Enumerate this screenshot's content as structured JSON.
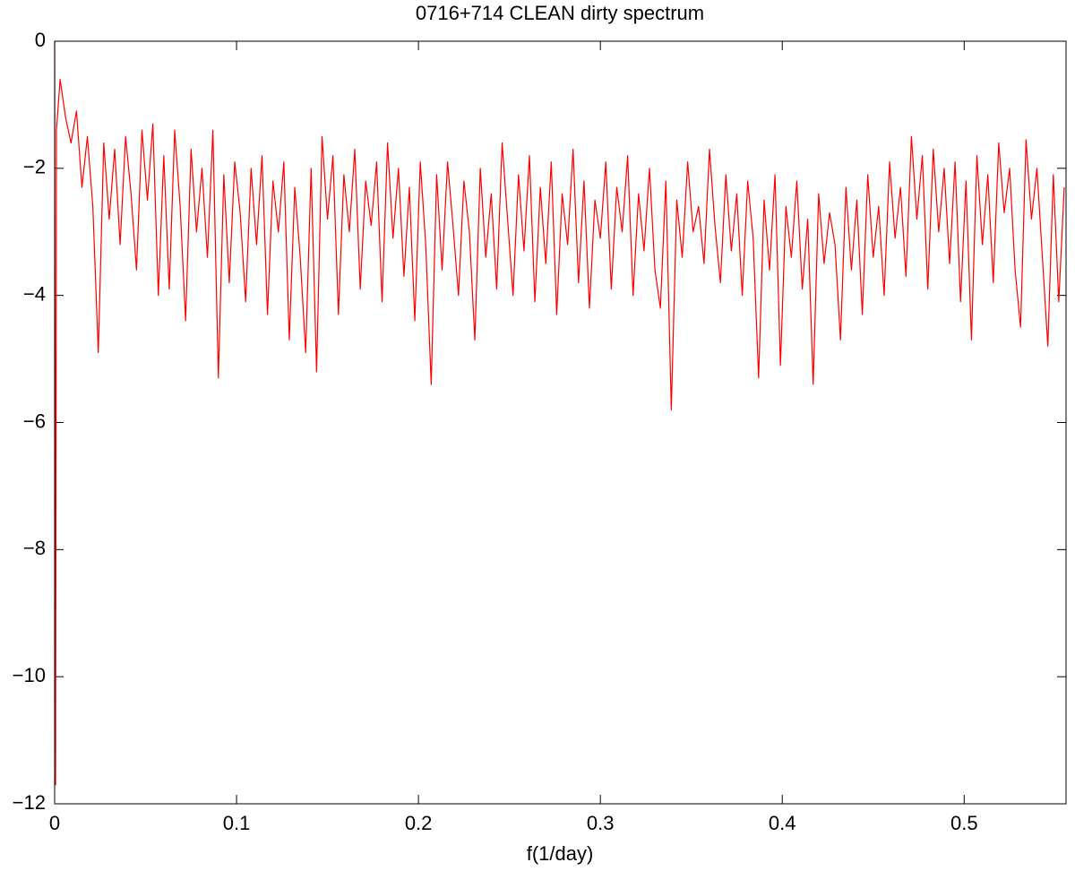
{
  "chart_data": {
    "type": "line",
    "title": "0716+714 CLEAN dirty spectrum",
    "x_label": "f(1/day)",
    "color": "#ff0000",
    "xlim": [
      0,
      0.556
    ],
    "ylim": [
      -12,
      0
    ],
    "xticks": [
      0,
      0.1,
      0.2,
      0.3,
      0.4,
      0.5
    ],
    "yticks": [
      0,
      {
        "value": -2,
        "label": "−2"
      },
      {
        "value": -4,
        "label": "−4"
      },
      {
        "value": -6,
        "label": "−6"
      },
      {
        "value": -8,
        "label": "−8"
      },
      {
        "value": -10,
        "label": "−10"
      },
      {
        "value": -12,
        "label": "−12"
      }
    ],
    "x": [
      0,
      0.0005,
      0.001,
      0.003,
      0.006,
      0.009,
      0.012,
      0.015,
      0.018,
      0.021,
      0.024,
      0.027,
      0.03,
      0.033,
      0.036,
      0.039,
      0.042,
      0.045,
      0.048,
      0.051,
      0.054,
      0.057,
      0.06,
      0.063,
      0.066,
      0.069,
      0.072,
      0.075,
      0.078,
      0.081,
      0.084,
      0.087,
      0.09,
      0.093,
      0.096,
      0.099,
      0.102,
      0.105,
      0.108,
      0.111,
      0.114,
      0.117,
      0.12,
      0.123,
      0.126,
      0.129,
      0.132,
      0.135,
      0.138,
      0.141,
      0.144,
      0.147,
      0.15,
      0.153,
      0.156,
      0.159,
      0.162,
      0.165,
      0.168,
      0.171,
      0.174,
      0.177,
      0.18,
      0.183,
      0.186,
      0.189,
      0.192,
      0.195,
      0.198,
      0.201,
      0.204,
      0.207,
      0.21,
      0.213,
      0.216,
      0.219,
      0.222,
      0.225,
      0.228,
      0.231,
      0.234,
      0.237,
      0.24,
      0.243,
      0.246,
      0.249,
      0.252,
      0.255,
      0.258,
      0.261,
      0.264,
      0.267,
      0.27,
      0.273,
      0.276,
      0.279,
      0.282,
      0.285,
      0.288,
      0.291,
      0.294,
      0.297,
      0.3,
      0.303,
      0.306,
      0.309,
      0.312,
      0.315,
      0.318,
      0.321,
      0.324,
      0.327,
      0.33,
      0.333,
      0.336,
      0.339,
      0.342,
      0.345,
      0.348,
      0.351,
      0.354,
      0.357,
      0.36,
      0.363,
      0.366,
      0.369,
      0.372,
      0.375,
      0.378,
      0.381,
      0.384,
      0.387,
      0.39,
      0.393,
      0.396,
      0.399,
      0.402,
      0.405,
      0.408,
      0.411,
      0.414,
      0.417,
      0.42,
      0.423,
      0.426,
      0.429,
      0.432,
      0.435,
      0.438,
      0.441,
      0.444,
      0.447,
      0.45,
      0.453,
      0.456,
      0.459,
      0.462,
      0.465,
      0.468,
      0.471,
      0.474,
      0.477,
      0.48,
      0.483,
      0.486,
      0.489,
      0.492,
      0.495,
      0.498,
      0.501,
      0.504,
      0.507,
      0.51,
      0.513,
      0.516,
      0.519,
      0.522,
      0.525,
      0.528,
      0.531,
      0.534,
      0.537,
      0.54,
      0.543,
      0.546,
      0.549,
      0.552,
      0.555
    ],
    "values": [
      0,
      -11.7,
      -1.4,
      -0.6,
      -1.2,
      -1.6,
      -1.1,
      -2.3,
      -1.5,
      -2.6,
      -4.9,
      -1.6,
      -2.8,
      -1.7,
      -3.2,
      -1.5,
      -2.4,
      -3.6,
      -1.4,
      -2.5,
      -1.3,
      -4.0,
      -1.8,
      -3.9,
      -1.4,
      -2.6,
      -4.4,
      -1.7,
      -3.0,
      -2.0,
      -3.4,
      -1.4,
      -5.3,
      -2.1,
      -3.8,
      -1.9,
      -2.7,
      -4.1,
      -2.0,
      -3.2,
      -1.8,
      -4.3,
      -2.2,
      -3.0,
      -1.9,
      -4.7,
      -2.3,
      -3.4,
      -4.9,
      -2.0,
      -5.2,
      -1.5,
      -2.8,
      -1.8,
      -4.3,
      -2.1,
      -3.0,
      -1.7,
      -3.9,
      -2.2,
      -2.9,
      -1.9,
      -4.1,
      -1.6,
      -3.1,
      -2.0,
      -3.7,
      -2.3,
      -4.4,
      -1.9,
      -3.2,
      -5.4,
      -2.1,
      -3.6,
      -1.9,
      -2.9,
      -4.0,
      -2.2,
      -3.0,
      -4.7,
      -2.0,
      -3.4,
      -2.4,
      -3.9,
      -1.6,
      -2.8,
      -4.0,
      -2.1,
      -3.3,
      -1.8,
      -4.1,
      -2.3,
      -3.5,
      -1.9,
      -4.3,
      -2.4,
      -3.2,
      -1.7,
      -3.8,
      -2.2,
      -4.2,
      -2.5,
      -3.1,
      -1.9,
      -3.9,
      -2.3,
      -3.0,
      -1.8,
      -4.0,
      -2.4,
      -3.3,
      -2.0,
      -3.6,
      -4.2,
      -2.2,
      -5.8,
      -2.5,
      -3.4,
      -1.9,
      -3.0,
      -2.6,
      -3.5,
      -1.7,
      -2.9,
      -3.8,
      -2.1,
      -3.3,
      -2.4,
      -4.0,
      -2.2,
      -3.1,
      -5.3,
      -2.5,
      -3.6,
      -2.1,
      -5.1,
      -2.6,
      -3.4,
      -2.2,
      -3.9,
      -2.8,
      -5.4,
      -2.4,
      -3.5,
      -2.7,
      -3.2,
      -4.7,
      -2.3,
      -3.6,
      -2.5,
      -4.3,
      -2.1,
      -3.4,
      -2.6,
      -4.0,
      -1.9,
      -3.1,
      -2.3,
      -3.7,
      -1.5,
      -2.8,
      -1.8,
      -3.9,
      -1.7,
      -3.0,
      -2.0,
      -3.5,
      -1.9,
      -4.1,
      -2.2,
      -4.7,
      -1.8,
      -3.2,
      -2.1,
      -3.8,
      -1.6,
      -2.7,
      -2.0,
      -3.6,
      -4.5,
      -1.55,
      -2.8,
      -2.0,
      -3.4,
      -4.8,
      -2.1,
      -4.1,
      -2.3
    ]
  }
}
